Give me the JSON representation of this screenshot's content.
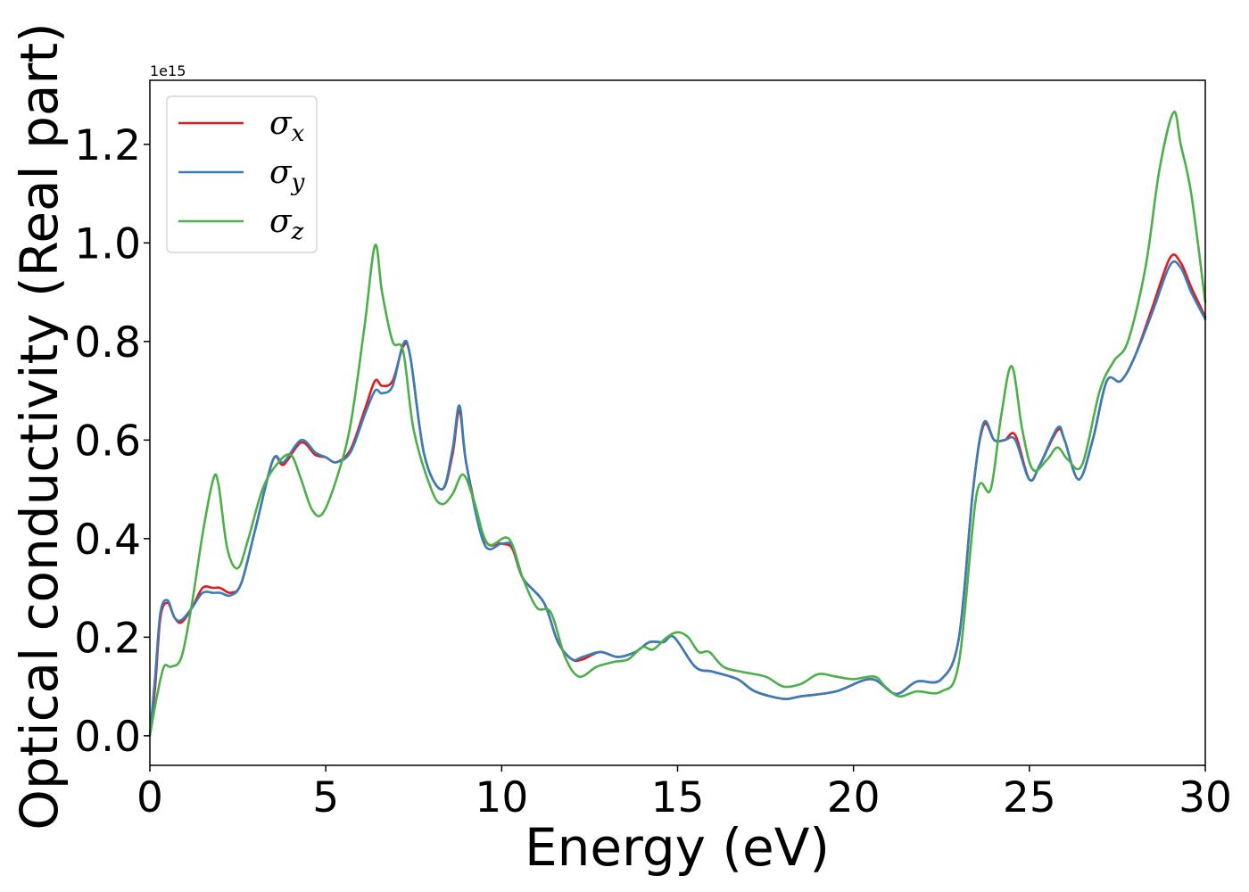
{
  "chart_data": {
    "type": "line",
    "xlabel": "Energy (eV)",
    "ylabel": "Optical conductivity (Real part)",
    "y_offset_text": "1e15",
    "xlim": [
      0,
      30
    ],
    "ylim": [
      -0.06,
      1.33
    ],
    "x_ticks": [
      "0",
      "5",
      "10",
      "15",
      "20",
      "25",
      "30"
    ],
    "y_ticks": [
      "0.0",
      "0.2",
      "0.4",
      "0.6",
      "0.8",
      "1.0",
      "1.2"
    ],
    "legend_position": "upper-left",
    "grid": false,
    "series": [
      {
        "name": "σx",
        "legend_symbol": "σ",
        "legend_sub": "x",
        "color": "#e41a1c",
        "points": [
          [
            0,
            0.0
          ],
          [
            0.15,
            0.1
          ],
          [
            0.3,
            0.24
          ],
          [
            0.5,
            0.27
          ],
          [
            0.7,
            0.24
          ],
          [
            0.9,
            0.23
          ],
          [
            1.2,
            0.26
          ],
          [
            1.5,
            0.3
          ],
          [
            1.8,
            0.3
          ],
          [
            2.0,
            0.3
          ],
          [
            2.3,
            0.29
          ],
          [
            2.6,
            0.31
          ],
          [
            3.0,
            0.42
          ],
          [
            3.5,
            0.56
          ],
          [
            3.8,
            0.55
          ],
          [
            4.3,
            0.595
          ],
          [
            4.7,
            0.57
          ],
          [
            5.0,
            0.565
          ],
          [
            5.3,
            0.555
          ],
          [
            5.7,
            0.58
          ],
          [
            6.1,
            0.66
          ],
          [
            6.4,
            0.72
          ],
          [
            6.6,
            0.71
          ],
          [
            6.9,
            0.72
          ],
          [
            7.2,
            0.79
          ],
          [
            7.4,
            0.77
          ],
          [
            7.8,
            0.57
          ],
          [
            8.3,
            0.5
          ],
          [
            8.6,
            0.57
          ],
          [
            8.8,
            0.66
          ],
          [
            9.0,
            0.55
          ],
          [
            9.5,
            0.4
          ],
          [
            10.0,
            0.39
          ],
          [
            10.3,
            0.38
          ],
          [
            10.6,
            0.32
          ],
          [
            11.2,
            0.27
          ],
          [
            11.6,
            0.19
          ],
          [
            12.0,
            0.155
          ],
          [
            12.3,
            0.155
          ],
          [
            12.8,
            0.17
          ],
          [
            13.3,
            0.16
          ],
          [
            13.8,
            0.17
          ],
          [
            14.2,
            0.19
          ],
          [
            14.6,
            0.19
          ],
          [
            14.9,
            0.2
          ],
          [
            15.5,
            0.14
          ],
          [
            16.0,
            0.13
          ],
          [
            16.7,
            0.115
          ],
          [
            17.2,
            0.09
          ],
          [
            18.0,
            0.075
          ],
          [
            18.5,
            0.08
          ],
          [
            19.5,
            0.09
          ],
          [
            20.5,
            0.115
          ],
          [
            21.2,
            0.085
          ],
          [
            21.8,
            0.11
          ],
          [
            22.5,
            0.115
          ],
          [
            23.0,
            0.2
          ],
          [
            23.4,
            0.5
          ],
          [
            23.7,
            0.63
          ],
          [
            24.0,
            0.6
          ],
          [
            24.3,
            0.6
          ],
          [
            24.6,
            0.61
          ],
          [
            25.0,
            0.52
          ],
          [
            25.3,
            0.55
          ],
          [
            25.8,
            0.62
          ],
          [
            26.0,
            0.6
          ],
          [
            26.4,
            0.52
          ],
          [
            26.8,
            0.6
          ],
          [
            27.2,
            0.72
          ],
          [
            27.6,
            0.72
          ],
          [
            28.0,
            0.77
          ],
          [
            28.5,
            0.87
          ],
          [
            29.0,
            0.97
          ],
          [
            29.3,
            0.96
          ],
          [
            29.6,
            0.91
          ],
          [
            30.0,
            0.85
          ]
        ]
      },
      {
        "name": "σy",
        "legend_symbol": "σ",
        "legend_sub": "y",
        "color": "#377eb8",
        "points": [
          [
            0,
            0.0
          ],
          [
            0.15,
            0.12
          ],
          [
            0.3,
            0.25
          ],
          [
            0.5,
            0.275
          ],
          [
            0.7,
            0.24
          ],
          [
            0.9,
            0.235
          ],
          [
            1.2,
            0.26
          ],
          [
            1.5,
            0.29
          ],
          [
            1.8,
            0.29
          ],
          [
            2.0,
            0.29
          ],
          [
            2.3,
            0.285
          ],
          [
            2.6,
            0.31
          ],
          [
            3.0,
            0.42
          ],
          [
            3.5,
            0.56
          ],
          [
            3.8,
            0.555
          ],
          [
            4.3,
            0.6
          ],
          [
            4.7,
            0.575
          ],
          [
            5.0,
            0.565
          ],
          [
            5.3,
            0.555
          ],
          [
            5.7,
            0.575
          ],
          [
            6.1,
            0.65
          ],
          [
            6.4,
            0.7
          ],
          [
            6.6,
            0.695
          ],
          [
            6.9,
            0.71
          ],
          [
            7.2,
            0.795
          ],
          [
            7.4,
            0.77
          ],
          [
            7.8,
            0.57
          ],
          [
            8.3,
            0.5
          ],
          [
            8.6,
            0.58
          ],
          [
            8.8,
            0.67
          ],
          [
            9.0,
            0.55
          ],
          [
            9.5,
            0.39
          ],
          [
            10.0,
            0.39
          ],
          [
            10.3,
            0.385
          ],
          [
            10.6,
            0.32
          ],
          [
            11.2,
            0.27
          ],
          [
            11.6,
            0.19
          ],
          [
            12.0,
            0.155
          ],
          [
            12.3,
            0.16
          ],
          [
            12.8,
            0.17
          ],
          [
            13.3,
            0.16
          ],
          [
            13.8,
            0.17
          ],
          [
            14.2,
            0.19
          ],
          [
            14.6,
            0.19
          ],
          [
            14.9,
            0.2
          ],
          [
            15.5,
            0.14
          ],
          [
            16.0,
            0.13
          ],
          [
            16.7,
            0.115
          ],
          [
            17.2,
            0.09
          ],
          [
            18.0,
            0.075
          ],
          [
            18.5,
            0.08
          ],
          [
            19.5,
            0.09
          ],
          [
            20.5,
            0.115
          ],
          [
            21.2,
            0.085
          ],
          [
            21.8,
            0.11
          ],
          [
            22.5,
            0.115
          ],
          [
            23.0,
            0.2
          ],
          [
            23.4,
            0.5
          ],
          [
            23.7,
            0.635
          ],
          [
            24.0,
            0.6
          ],
          [
            24.3,
            0.6
          ],
          [
            24.6,
            0.6
          ],
          [
            25.0,
            0.52
          ],
          [
            25.3,
            0.55
          ],
          [
            25.8,
            0.625
          ],
          [
            26.0,
            0.6
          ],
          [
            26.4,
            0.52
          ],
          [
            26.8,
            0.6
          ],
          [
            27.2,
            0.72
          ],
          [
            27.6,
            0.72
          ],
          [
            28.0,
            0.77
          ],
          [
            28.5,
            0.86
          ],
          [
            29.0,
            0.955
          ],
          [
            29.3,
            0.95
          ],
          [
            29.6,
            0.9
          ],
          [
            30.0,
            0.845
          ]
        ]
      },
      {
        "name": "σz",
        "legend_symbol": "σ",
        "legend_sub": "z",
        "color": "#4daf4a",
        "points": [
          [
            0,
            0.0
          ],
          [
            0.2,
            0.08
          ],
          [
            0.4,
            0.14
          ],
          [
            0.6,
            0.14
          ],
          [
            0.9,
            0.16
          ],
          [
            1.2,
            0.27
          ],
          [
            1.5,
            0.41
          ],
          [
            1.8,
            0.52
          ],
          [
            1.95,
            0.51
          ],
          [
            2.2,
            0.38
          ],
          [
            2.5,
            0.34
          ],
          [
            2.8,
            0.4
          ],
          [
            3.2,
            0.5
          ],
          [
            3.6,
            0.55
          ],
          [
            4.0,
            0.57
          ],
          [
            4.3,
            0.52
          ],
          [
            4.6,
            0.46
          ],
          [
            4.9,
            0.45
          ],
          [
            5.3,
            0.52
          ],
          [
            5.7,
            0.63
          ],
          [
            6.1,
            0.83
          ],
          [
            6.4,
            0.995
          ],
          [
            6.6,
            0.9
          ],
          [
            6.9,
            0.8
          ],
          [
            7.2,
            0.78
          ],
          [
            7.5,
            0.62
          ],
          [
            8.0,
            0.5
          ],
          [
            8.3,
            0.47
          ],
          [
            8.6,
            0.49
          ],
          [
            8.9,
            0.53
          ],
          [
            9.2,
            0.48
          ],
          [
            9.6,
            0.39
          ],
          [
            10.2,
            0.4
          ],
          [
            10.6,
            0.32
          ],
          [
            11.0,
            0.26
          ],
          [
            11.4,
            0.25
          ],
          [
            11.8,
            0.16
          ],
          [
            12.2,
            0.12
          ],
          [
            12.7,
            0.14
          ],
          [
            13.2,
            0.15
          ],
          [
            13.6,
            0.155
          ],
          [
            14.0,
            0.18
          ],
          [
            14.3,
            0.175
          ],
          [
            14.7,
            0.2
          ],
          [
            15.0,
            0.21
          ],
          [
            15.3,
            0.2
          ],
          [
            15.6,
            0.17
          ],
          [
            15.9,
            0.17
          ],
          [
            16.3,
            0.14
          ],
          [
            16.8,
            0.13
          ],
          [
            17.5,
            0.12
          ],
          [
            18.0,
            0.1
          ],
          [
            18.5,
            0.105
          ],
          [
            19.0,
            0.125
          ],
          [
            19.5,
            0.12
          ],
          [
            20.0,
            0.115
          ],
          [
            20.6,
            0.12
          ],
          [
            20.9,
            0.1
          ],
          [
            21.3,
            0.08
          ],
          [
            21.8,
            0.09
          ],
          [
            22.5,
            0.09
          ],
          [
            23.0,
            0.15
          ],
          [
            23.5,
            0.49
          ],
          [
            23.9,
            0.5
          ],
          [
            24.2,
            0.65
          ],
          [
            24.5,
            0.75
          ],
          [
            24.8,
            0.62
          ],
          [
            25.1,
            0.54
          ],
          [
            25.5,
            0.56
          ],
          [
            25.8,
            0.585
          ],
          [
            26.1,
            0.56
          ],
          [
            26.5,
            0.55
          ],
          [
            27.0,
            0.7
          ],
          [
            27.4,
            0.76
          ],
          [
            27.8,
            0.8
          ],
          [
            28.3,
            0.95
          ],
          [
            28.7,
            1.15
          ],
          [
            29.1,
            1.265
          ],
          [
            29.3,
            1.2
          ],
          [
            29.6,
            1.1
          ],
          [
            30.0,
            0.88
          ]
        ]
      }
    ]
  }
}
